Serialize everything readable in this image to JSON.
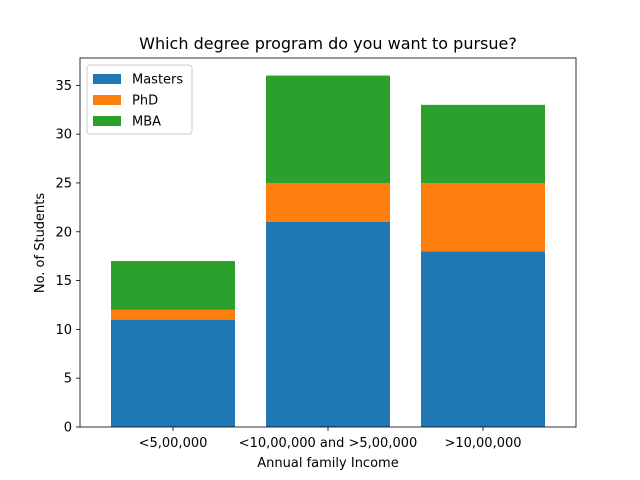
{
  "chart_data": {
    "type": "bar",
    "stacked": true,
    "title": "Which degree program do you want to pursue?",
    "xlabel": "Annual family Income",
    "ylabel": "No. of Students",
    "categories": [
      "<5,00,000",
      "<10,00,000 and >5,00,000",
      ">10,00,000"
    ],
    "series": [
      {
        "name": "Masters",
        "values": [
          11,
          21,
          18
        ],
        "color": "#1f77b4"
      },
      {
        "name": "PhD",
        "values": [
          1,
          4,
          7
        ],
        "color": "#ff7f0e"
      },
      {
        "name": "MBA",
        "values": [
          5,
          11,
          8
        ],
        "color": "#2ca02c"
      }
    ],
    "ylim": [
      0,
      37.8
    ],
    "yticks": [
      "0",
      "5",
      "10",
      "15",
      "20",
      "25",
      "30",
      "35"
    ],
    "grid": false,
    "legend_position": "top-left"
  }
}
